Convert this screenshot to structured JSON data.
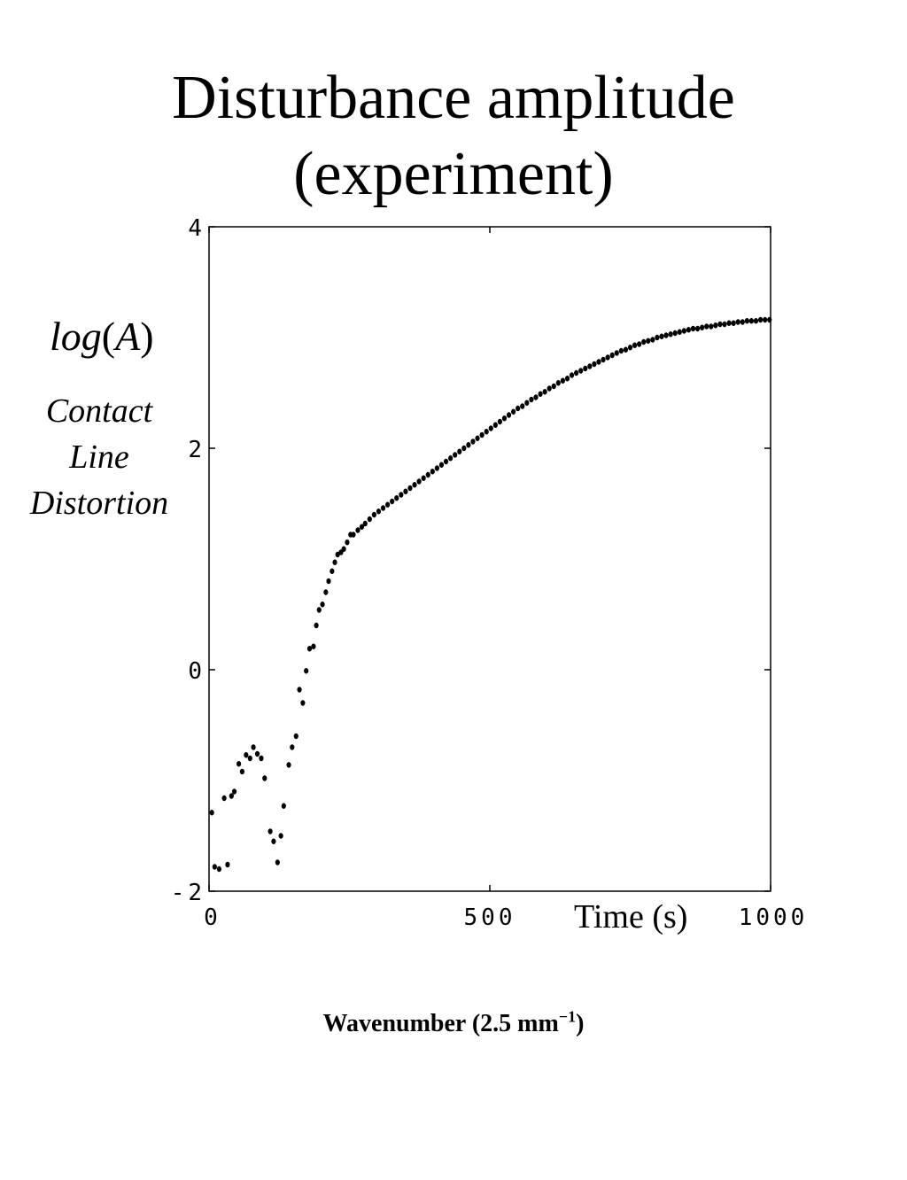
{
  "title": {
    "line1": "Disturbance amplitude",
    "line2": "(experiment)"
  },
  "ylabel": {
    "func": "log",
    "open": "(",
    "var": "A",
    "close": ")",
    "line1": "Contact",
    "line2": "Line",
    "line3": "Distortion"
  },
  "xlabel": "Time (s)",
  "footnote": {
    "text": "Wavenumber (2.5 mm",
    "sup": "−1",
    "close": ")"
  },
  "chart_data": {
    "type": "scatter",
    "xlim": [
      0,
      1000
    ],
    "ylim": [
      -2,
      4
    ],
    "xticks": [
      0,
      500,
      1000
    ],
    "yticks": [
      -2,
      0,
      2,
      4
    ],
    "xtick_labels": [
      "0",
      "500",
      "1000"
    ],
    "ytick_labels": [
      "-2",
      "0",
      "2",
      "4"
    ],
    "grid": false,
    "marker_color": "#000000",
    "series": [
      {
        "x": [
          5,
          10,
          18,
          27,
          33,
          40,
          45,
          53,
          59,
          66,
          73,
          79,
          86,
          93,
          99,
          109,
          115,
          122,
          128,
          133,
          142,
          148,
          155,
          161,
          167,
          173,
          179,
          186,
          191,
          196,
          202,
          208,
          213,
          219,
          224,
          229,
          235,
          240,
          246,
          252,
          257,
          265,
          272,
          278,
          286,
          294,
          302,
          310,
          318,
          326,
          334,
          342,
          350,
          358,
          366,
          374,
          382,
          390,
          398,
          406,
          414,
          422,
          430,
          438,
          446,
          454,
          462,
          470,
          478,
          486,
          494,
          502,
          510,
          518,
          526,
          534,
          542,
          550,
          558,
          566,
          574,
          582,
          590,
          598,
          606,
          614,
          622,
          630,
          638,
          646,
          654,
          662,
          670,
          678,
          686,
          694,
          702,
          710,
          718,
          726,
          734,
          742,
          750,
          758,
          766,
          774,
          782,
          790,
          798,
          806,
          814,
          822,
          830,
          838,
          846,
          854,
          862,
          870,
          878,
          886,
          894,
          902,
          910,
          918,
          926,
          934,
          942,
          950,
          958,
          966,
          974,
          982,
          990,
          998
        ],
        "y": [
          -1.29,
          -1.78,
          -1.8,
          -1.16,
          -1.76,
          -1.14,
          -1.1,
          -0.85,
          -0.92,
          -0.77,
          -0.8,
          -0.7,
          -0.76,
          -0.8,
          -0.98,
          -1.46,
          -1.55,
          -1.74,
          -1.5,
          -1.23,
          -0.86,
          -0.7,
          -0.6,
          -0.18,
          -0.3,
          -0.01,
          0.19,
          0.21,
          0.4,
          0.54,
          0.59,
          0.7,
          0.8,
          0.89,
          0.97,
          1.04,
          1.06,
          1.09,
          1.15,
          1.22,
          1.22,
          1.26,
          1.29,
          1.32,
          1.36,
          1.4,
          1.43,
          1.46,
          1.49,
          1.52,
          1.55,
          1.58,
          1.61,
          1.64,
          1.67,
          1.7,
          1.73,
          1.76,
          1.79,
          1.82,
          1.85,
          1.88,
          1.91,
          1.94,
          1.97,
          2.0,
          2.03,
          2.06,
          2.09,
          2.12,
          2.15,
          2.18,
          2.21,
          2.24,
          2.27,
          2.3,
          2.33,
          2.36,
          2.38,
          2.41,
          2.44,
          2.46,
          2.49,
          2.51,
          2.54,
          2.56,
          2.59,
          2.61,
          2.63,
          2.66,
          2.68,
          2.7,
          2.72,
          2.74,
          2.76,
          2.78,
          2.8,
          2.82,
          2.84,
          2.86,
          2.88,
          2.89,
          2.91,
          2.93,
          2.94,
          2.96,
          2.97,
          2.98,
          3.0,
          3.01,
          3.02,
          3.03,
          3.04,
          3.05,
          3.06,
          3.07,
          3.08,
          3.08,
          3.09,
          3.1,
          3.1,
          3.11,
          3.12,
          3.12,
          3.13,
          3.13,
          3.14,
          3.14,
          3.15,
          3.15,
          3.15,
          3.16,
          3.16,
          3.16
        ]
      }
    ]
  }
}
